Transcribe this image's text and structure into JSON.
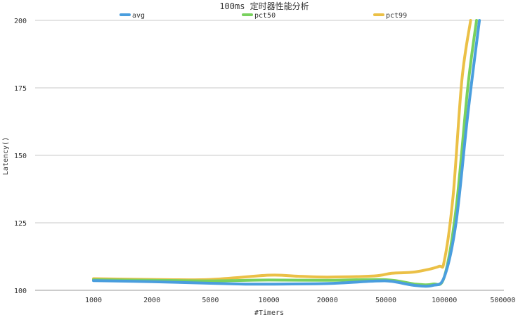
{
  "chart_data": {
    "type": "line",
    "title": "100ms 定时器性能分析",
    "xlabel": "#Timers",
    "ylabel": "Latency()",
    "categories": [
      "1000",
      "2000",
      "5000",
      "10000",
      "20000",
      "50000",
      "100000",
      "500000"
    ],
    "ylim": [
      100,
      200
    ],
    "yticks": [
      100,
      125,
      150,
      175,
      200
    ],
    "grid": true,
    "legend_position": "top",
    "series": [
      {
        "name": "avg",
        "color": "#4a9ede",
        "points": [
          [
            0,
            103.6
          ],
          [
            1,
            103.2
          ],
          [
            2,
            102.6
          ],
          [
            2.6,
            102.3
          ],
          [
            3,
            102.3
          ],
          [
            4,
            102.5
          ],
          [
            4.8,
            103.4
          ],
          [
            5.1,
            103.3
          ],
          [
            5.5,
            101.8
          ],
          [
            5.8,
            101.8
          ],
          [
            6,
            105
          ],
          [
            6.2,
            125
          ],
          [
            6.4,
            165
          ],
          [
            6.6,
            200
          ]
        ]
      },
      {
        "name": "pct50",
        "color": "#79d15e",
        "points": [
          [
            0,
            103.9
          ],
          [
            1,
            103.7
          ],
          [
            2,
            103.5
          ],
          [
            3,
            103.8
          ],
          [
            4,
            103.7
          ],
          [
            5,
            103.9
          ],
          [
            5.5,
            102.3
          ],
          [
            5.8,
            102.3
          ],
          [
            6,
            105
          ],
          [
            6.2,
            130
          ],
          [
            6.4,
            175
          ],
          [
            6.55,
            200
          ]
        ]
      },
      {
        "name": "pct99",
        "color": "#ebc046",
        "points": [
          [
            0,
            104.3
          ],
          [
            1,
            104
          ],
          [
            2,
            104
          ],
          [
            3,
            105.6
          ],
          [
            3.5,
            105.2
          ],
          [
            4,
            104.9
          ],
          [
            4.8,
            105.3
          ],
          [
            5.1,
            106.3
          ],
          [
            5.5,
            106.8
          ],
          [
            5.9,
            108.8
          ],
          [
            6,
            111
          ],
          [
            6.15,
            135
          ],
          [
            6.3,
            178
          ],
          [
            6.45,
            200
          ]
        ]
      }
    ]
  }
}
